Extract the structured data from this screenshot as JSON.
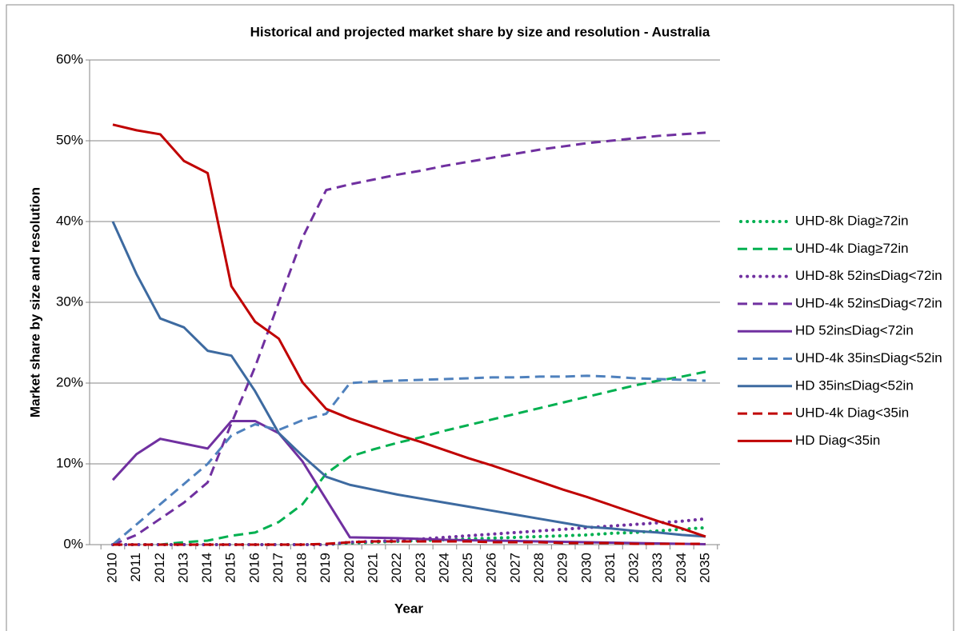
{
  "chart_data": {
    "type": "line",
    "title": "Historical and projected market share by size and resolution - Australia",
    "y_label": "Market share by size and resolution",
    "x_label": "Year",
    "categories": [
      "2010",
      "2011",
      "2012",
      "2013",
      "2014",
      "2015",
      "2016",
      "2017",
      "2018",
      "2019",
      "2020",
      "2021",
      "2022",
      "2023",
      "2024",
      "2025",
      "2026",
      "2027",
      "2028",
      "2029",
      "2030",
      "2031",
      "2032",
      "2033",
      "2034",
      "2035"
    ],
    "ylim": [
      0,
      60
    ],
    "yticks": [
      {
        "value": 0,
        "label": "0%"
      },
      {
        "value": 10,
        "label": "10%"
      },
      {
        "value": 20,
        "label": "20%"
      },
      {
        "value": 30,
        "label": "30%"
      },
      {
        "value": 40,
        "label": "40%"
      },
      {
        "value": 50,
        "label": "50%"
      },
      {
        "value": 60,
        "label": "60%"
      }
    ],
    "grid": true,
    "legend": "right",
    "series": [
      {
        "name": "UHD-8k Diag≥72in",
        "color": "#00b050",
        "line_style": "dot",
        "values": [
          0,
          0,
          0,
          0,
          0,
          0,
          0,
          0,
          0,
          0,
          0.2,
          0.3,
          0.4,
          0.5,
          0.6,
          0.7,
          0.8,
          0.9,
          1.0,
          1.1,
          1.2,
          1.4,
          1.5,
          1.7,
          1.9,
          2.1
        ]
      },
      {
        "name": "UHD-4k Diag≥72in",
        "color": "#00b050",
        "line_style": "dash",
        "values": [
          0,
          0,
          0,
          0.3,
          0.5,
          1.1,
          1.5,
          2.8,
          5,
          8.8,
          10.9,
          11.8,
          12.6,
          13.3,
          14.1,
          14.8,
          15.5,
          16.2,
          16.9,
          17.6,
          18.3,
          19,
          19.7,
          20.3,
          20.8,
          21.4
        ]
      },
      {
        "name": "UHD-8k 52in≤Diag<72in",
        "color": "#7030a0",
        "line_style": "dot",
        "values": [
          0,
          0,
          0,
          0,
          0,
          0,
          0,
          0,
          0,
          0,
          0.3,
          0.4,
          0.5,
          0.7,
          0.9,
          1.1,
          1.3,
          1.5,
          1.7,
          1.9,
          2.1,
          2.3,
          2.5,
          2.7,
          2.9,
          3.2
        ]
      },
      {
        "name": "UHD-4k 52in≤Diag<72in",
        "color": "#7030a0",
        "line_style": "dash",
        "values": [
          0,
          1.2,
          3.2,
          5.2,
          7.7,
          15,
          22,
          30,
          38,
          43.9,
          44.6,
          45.2,
          45.8,
          46.3,
          46.9,
          47.4,
          47.9,
          48.4,
          48.9,
          49.3,
          49.7,
          50,
          50.3,
          50.6,
          50.8,
          51
        ]
      },
      {
        "name": "HD 52in≤Diag<72in",
        "color": "#7030a0",
        "line_style": "solid",
        "values": [
          8,
          11.2,
          13.1,
          12.5,
          11.9,
          15.3,
          15.3,
          13.8,
          10.3,
          5.6,
          0.9,
          0.85,
          0.8,
          0.7,
          0.6,
          0.55,
          0.5,
          0.45,
          0.4,
          0.35,
          0.3,
          0.25,
          0.2,
          0.15,
          0.1,
          0.05
        ]
      },
      {
        "name": "UHD-4k 35in≤Diag<52in",
        "color": "#4f81bd",
        "line_style": "dash",
        "values": [
          0,
          2.5,
          5,
          7.5,
          10,
          13.5,
          14.9,
          14.2,
          15.4,
          16.2,
          20,
          20.2,
          20.3,
          20.4,
          20.5,
          20.6,
          20.7,
          20.7,
          20.8,
          20.8,
          20.9,
          20.8,
          20.6,
          20.5,
          20.4,
          20.3
        ]
      },
      {
        "name": "HD 35in≤Diag<52in",
        "color": "#3d6aa0",
        "line_style": "solid",
        "values": [
          40,
          33.5,
          28,
          26.9,
          24,
          23.4,
          19,
          13.8,
          11,
          8.4,
          7.4,
          6.8,
          6.2,
          5.7,
          5.2,
          4.7,
          4.2,
          3.7,
          3.2,
          2.7,
          2.2,
          2.0,
          1.7,
          1.5,
          1.2,
          1.0
        ]
      },
      {
        "name": "UHD-4k Diag<35in",
        "color": "#c00000",
        "line_style": "dash",
        "values": [
          0,
          0,
          0,
          0,
          0,
          0,
          0,
          0,
          0,
          0.1,
          0.3,
          0.4,
          0.4,
          0.4,
          0.4,
          0.4,
          0.3,
          0.3,
          0.3,
          0.2,
          0.2,
          0.2,
          0.1,
          0.1,
          0.1,
          0.1
        ]
      },
      {
        "name": "HD Diag<35in",
        "color": "#c00000",
        "line_style": "solid",
        "values": [
          52,
          51.3,
          50.8,
          47.5,
          46,
          32,
          27.6,
          25.5,
          20.1,
          16.8,
          15.6,
          14.6,
          13.6,
          12.7,
          11.7,
          10.7,
          9.8,
          8.8,
          7.8,
          6.8,
          5.9,
          4.9,
          3.9,
          2.9,
          2.0,
          1.0
        ]
      }
    ]
  }
}
